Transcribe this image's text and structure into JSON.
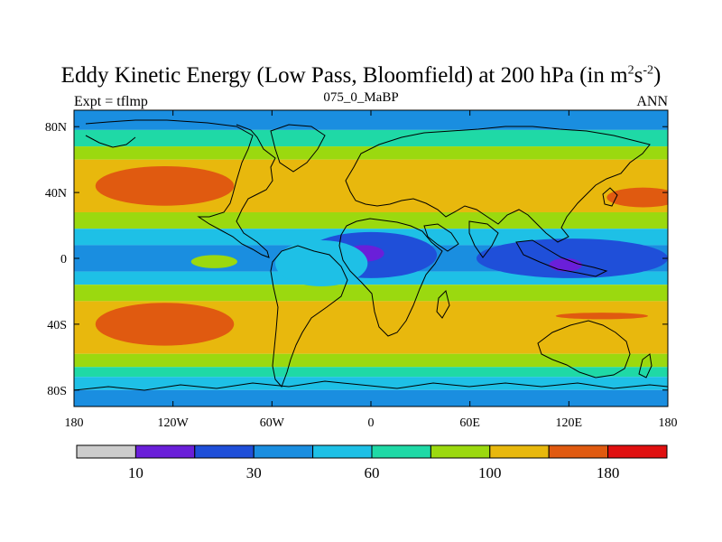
{
  "title_main": "Eddy Kinetic Energy (Low Pass, Bloomfield) at 200 hPa (in m",
  "title_sup1": "2",
  "title_mid": "s",
  "title_sup2": "-2",
  "title_end": ")",
  "left_label": "Expt = tflmp",
  "center_label": "075_0_MaBP",
  "right_label": "ANN",
  "chart_data": {
    "type": "heatmap",
    "xlim": [
      -180,
      180
    ],
    "ylim": [
      -90,
      90
    ],
    "x_ticks": [
      {
        "value": -180,
        "label": "180"
      },
      {
        "value": -120,
        "label": "120W"
      },
      {
        "value": -60,
        "label": "60W"
      },
      {
        "value": 0,
        "label": "0"
      },
      {
        "value": 60,
        "label": "60E"
      },
      {
        "value": 120,
        "label": "120E"
      },
      {
        "value": 180,
        "label": "180"
      }
    ],
    "y_ticks": [
      {
        "value": 80,
        "label": "80N"
      },
      {
        "value": 40,
        "label": "40N"
      },
      {
        "value": 0,
        "label": "0"
      },
      {
        "value": -40,
        "label": "40S"
      },
      {
        "value": -80,
        "label": "80S"
      }
    ],
    "colorbar": {
      "colors": [
        "#cccccc",
        "#6a1fd9",
        "#1f4fd9",
        "#1a8ee0",
        "#1ec0e6",
        "#1fd9a6",
        "#9bd90f",
        "#e8b80d",
        "#e05a10",
        "#e01010"
      ],
      "labels": [
        {
          "boundary": 1,
          "text": "10"
        },
        {
          "boundary": 3,
          "text": "30"
        },
        {
          "boundary": 5,
          "text": "60"
        },
        {
          "boundary": 7,
          "text": "100"
        },
        {
          "boundary": 9,
          "text": "180"
        }
      ]
    },
    "field_bands": [
      {
        "lat": [
          78,
          90
        ],
        "level": 3
      },
      {
        "lat": [
          68,
          78
        ],
        "level": 5
      },
      {
        "lat": [
          60,
          68
        ],
        "level": 6
      },
      {
        "lat": [
          28,
          60
        ],
        "level": 7
      },
      {
        "lat": [
          18,
          28
        ],
        "level": 6
      },
      {
        "lat": [
          8,
          18
        ],
        "level": 4
      },
      {
        "lat": [
          -8,
          8
        ],
        "level": 3
      },
      {
        "lat": [
          -16,
          -8
        ],
        "level": 4
      },
      {
        "lat": [
          -26,
          -16
        ],
        "level": 6
      },
      {
        "lat": [
          -58,
          -26
        ],
        "level": 7
      },
      {
        "lat": [
          -66,
          -58
        ],
        "level": 6
      },
      {
        "lat": [
          -72,
          -66
        ],
        "level": 5
      },
      {
        "lat": [
          -80,
          -72
        ],
        "level": 4
      },
      {
        "lat": [
          -90,
          -80
        ],
        "level": 3
      }
    ],
    "field_blobs": [
      {
        "lon": -125,
        "lat": 44,
        "rlon": 42,
        "rlat": 12,
        "level": 8
      },
      {
        "lon": 165,
        "lat": 37,
        "rlon": 22,
        "rlat": 6,
        "level": 8
      },
      {
        "lon": -125,
        "lat": -40,
        "rlon": 42,
        "rlat": 13,
        "level": 8
      },
      {
        "lon": 140,
        "lat": -35,
        "rlon": 28,
        "rlat": 2,
        "level": 8
      },
      {
        "lon": 0,
        "lat": 2,
        "rlon": 40,
        "rlat": 14,
        "level": 2
      },
      {
        "lon": 122,
        "lat": 0,
        "rlon": 58,
        "rlat": 12,
        "level": 2
      },
      {
        "lon": -4,
        "lat": 3,
        "rlon": 12,
        "rlat": 5,
        "level": 1
      },
      {
        "lon": 118,
        "lat": -4,
        "rlon": 10,
        "rlat": 4,
        "level": 1
      },
      {
        "lon": -30,
        "lat": -3,
        "rlon": 28,
        "rlat": 14,
        "level": 4
      },
      {
        "lon": -95,
        "lat": -2,
        "rlon": 14,
        "rlat": 4,
        "level": 6
      }
    ]
  }
}
